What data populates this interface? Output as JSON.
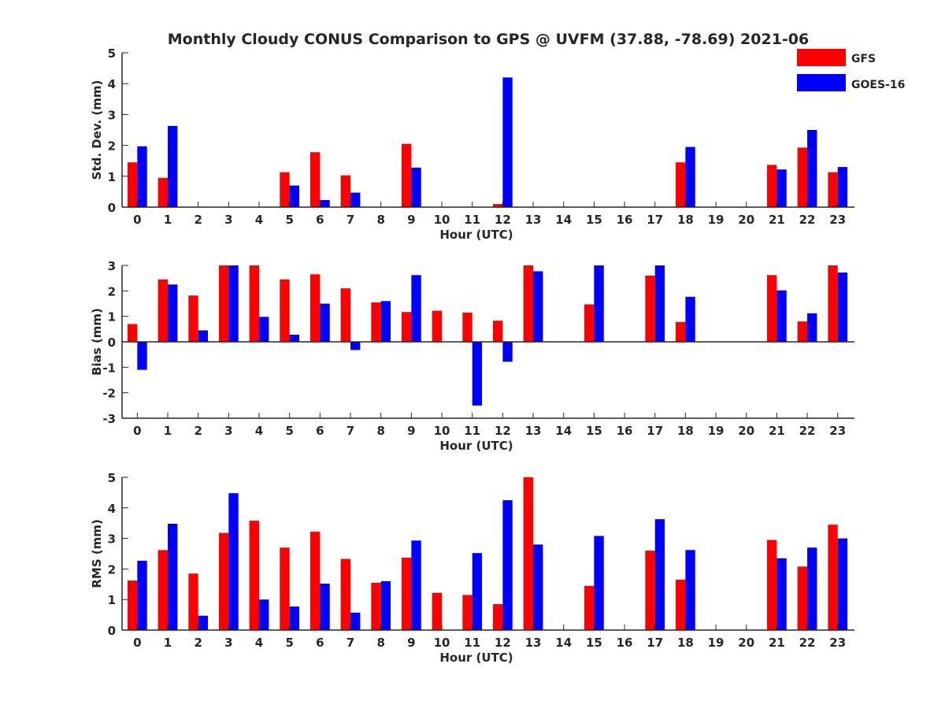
{
  "title": "Monthly Cloudy CONUS Comparison to GPS @ UVFM (37.88, -78.69) 2021-06",
  "legend": [
    {
      "label": "GFS",
      "color": "#ff0000"
    },
    {
      "label": "GOES-16",
      "color": "#0000ff"
    }
  ],
  "chart_data": [
    {
      "type": "bar",
      "xlabel": "Hour (UTC)",
      "ylabel": "Std. Dev. (mm)",
      "ylim": [
        0,
        5
      ],
      "yticks": [
        0,
        1,
        2,
        3,
        4,
        5
      ],
      "categories": [
        "0",
        "1",
        "2",
        "3",
        "4",
        "5",
        "6",
        "7",
        "8",
        "9",
        "10",
        "11",
        "12",
        "13",
        "14",
        "15",
        "16",
        "17",
        "18",
        "19",
        "20",
        "21",
        "22",
        "23"
      ],
      "series": [
        {
          "name": "GFS",
          "values": [
            1.45,
            0.95,
            0,
            0,
            0,
            1.13,
            1.78,
            1.03,
            0,
            2.05,
            0,
            0,
            0.1,
            0,
            0,
            0,
            0,
            0,
            1.45,
            0,
            0,
            1.37,
            1.93,
            1.13
          ]
        },
        {
          "name": "GOES-16",
          "values": [
            1.97,
            2.63,
            0,
            0,
            0,
            0.7,
            0.23,
            0.47,
            0,
            1.28,
            0,
            0,
            4.2,
            0,
            0,
            0,
            0,
            0,
            1.95,
            0,
            0,
            1.22,
            2.5,
            1.3
          ]
        }
      ]
    },
    {
      "type": "bar",
      "xlabel": "Hour (UTC)",
      "ylabel": "Bias (mm)",
      "ylim": [
        -3,
        3
      ],
      "yticks": [
        -3,
        -2,
        -1,
        0,
        1,
        2,
        3
      ],
      "categories": [
        "0",
        "1",
        "2",
        "3",
        "4",
        "5",
        "6",
        "7",
        "8",
        "9",
        "10",
        "11",
        "12",
        "13",
        "14",
        "15",
        "16",
        "17",
        "18",
        "19",
        "20",
        "21",
        "22",
        "23"
      ],
      "series": [
        {
          "name": "GFS",
          "values": [
            0.7,
            2.45,
            1.82,
            3.0,
            3.0,
            2.45,
            2.65,
            2.1,
            1.55,
            1.17,
            1.22,
            1.15,
            0.83,
            3.0,
            0,
            1.47,
            0,
            2.6,
            0.78,
            0,
            0,
            2.62,
            0.8,
            3.0
          ]
        },
        {
          "name": "GOES-16",
          "values": [
            -1.1,
            2.25,
            0.45,
            3.0,
            0.98,
            0.28,
            1.5,
            -0.32,
            1.6,
            2.62,
            0,
            -2.5,
            -0.78,
            2.77,
            0,
            3.0,
            0,
            3.0,
            1.77,
            0,
            0,
            2.02,
            1.12,
            2.72
          ]
        }
      ]
    },
    {
      "type": "bar",
      "xlabel": "Hour (UTC)",
      "ylabel": "RMS (mm)",
      "ylim": [
        0,
        5
      ],
      "yticks": [
        0,
        1,
        2,
        3,
        4,
        5
      ],
      "categories": [
        "0",
        "1",
        "2",
        "3",
        "4",
        "5",
        "6",
        "7",
        "8",
        "9",
        "10",
        "11",
        "12",
        "13",
        "14",
        "15",
        "16",
        "17",
        "18",
        "19",
        "20",
        "21",
        "22",
        "23"
      ],
      "series": [
        {
          "name": "GFS",
          "values": [
            1.62,
            2.62,
            1.85,
            3.18,
            3.58,
            2.7,
            3.22,
            2.33,
            1.55,
            2.37,
            1.22,
            1.15,
            0.85,
            5.0,
            0,
            1.45,
            0,
            2.6,
            1.65,
            0,
            0,
            2.95,
            2.08,
            3.45
          ]
        },
        {
          "name": "GOES-16",
          "values": [
            2.27,
            3.48,
            0.47,
            4.48,
            1.0,
            0.77,
            1.52,
            0.57,
            1.6,
            2.93,
            0,
            2.52,
            4.25,
            2.8,
            0,
            3.08,
            0,
            3.63,
            2.62,
            0,
            0,
            2.35,
            2.7,
            3.0
          ]
        }
      ]
    }
  ]
}
